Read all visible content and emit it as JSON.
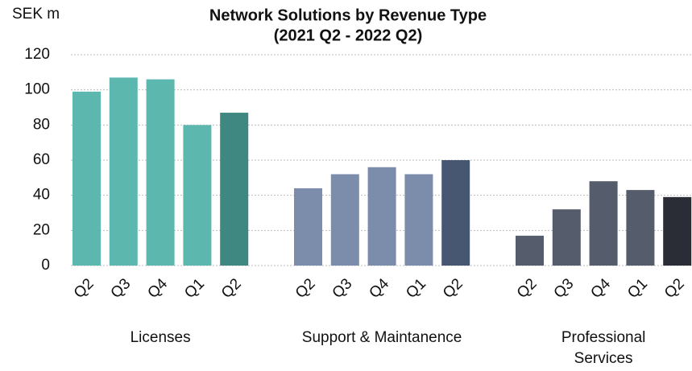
{
  "chart_data": {
    "type": "grouped_bar",
    "title": "Network Solutions by Revenue Type",
    "subtitle": "(2021 Q2 - 2022 Q2)",
    "y_label": "SEK m",
    "ylim": [
      0,
      120
    ],
    "yticks": [
      0,
      20,
      40,
      60,
      80,
      100,
      120
    ],
    "grid": true,
    "groups": [
      {
        "name": "Licenses",
        "categories": [
          "Q2",
          "Q3",
          "Q4",
          "Q1",
          "Q2"
        ],
        "values": [
          99,
          107,
          106,
          80,
          87
        ],
        "colors": [
          "#5cb8ae",
          "#5cb8ae",
          "#5cb8ae",
          "#5cb8ae",
          "#3e8881"
        ]
      },
      {
        "name": "Support & Maintanence",
        "categories": [
          "Q2",
          "Q3",
          "Q4",
          "Q1",
          "Q2"
        ],
        "values": [
          44,
          52,
          56,
          52,
          60
        ],
        "colors": [
          "#7b8dab",
          "#7b8dab",
          "#7b8dab",
          "#7b8dab",
          "#475671"
        ]
      },
      {
        "name": "Professional Services",
        "categories": [
          "Q2",
          "Q3",
          "Q4",
          "Q1",
          "Q2"
        ],
        "values": [
          17,
          32,
          48,
          43,
          39
        ],
        "colors": [
          "#555c6b",
          "#555c6b",
          "#555c6b",
          "#555c6b",
          "#2a2d35"
        ]
      }
    ]
  }
}
